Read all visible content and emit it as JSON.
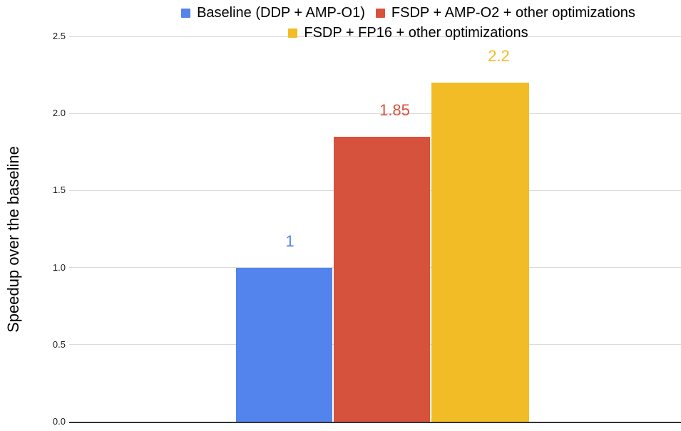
{
  "chart_data": {
    "type": "bar",
    "title": "",
    "xlabel": "",
    "ylabel": "Speedup over the baseline",
    "ylim": [
      0,
      2.5
    ],
    "ytick_interval": 0.5,
    "yticks": [
      "0.0",
      "0.5",
      "1.0",
      "1.5",
      "2.0",
      "2.5"
    ],
    "grid": true,
    "legend_position": "top",
    "background": "#ffffff",
    "gridline_color": "#dadada",
    "axis_color": "#333333",
    "series": [
      {
        "name": "Baseline (DDP + AMP-O1)",
        "value": 1,
        "data_label": "1",
        "color": "#5383EC"
      },
      {
        "name": "FSDP + AMP-O2 + other optimizations",
        "value": 1.85,
        "data_label": "1.85",
        "color": "#D7523D"
      },
      {
        "name": "FSDP + FP16 + other optimizations",
        "value": 2.2,
        "data_label": "2.2",
        "color": "#F2BC26"
      }
    ]
  }
}
